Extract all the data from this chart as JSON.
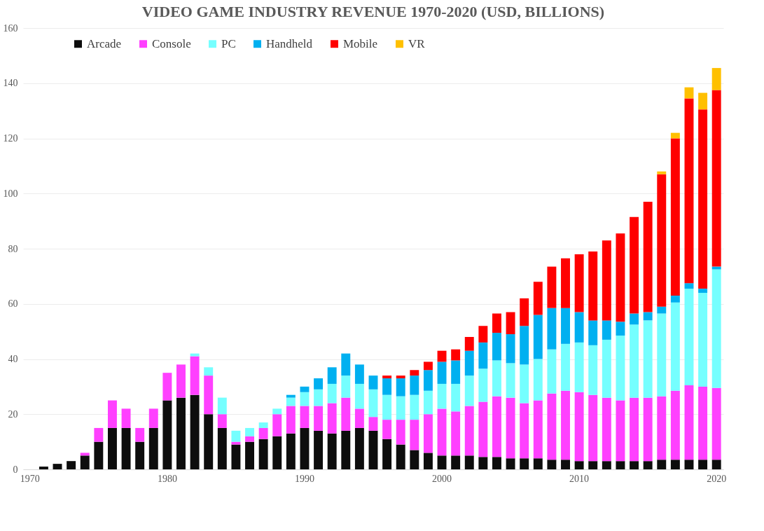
{
  "chart_data": {
    "type": "bar",
    "title": "VIDEO GAME INDUSTRY REVENUE 1970-2020 (USD, BILLIONS)",
    "stacked": true,
    "categories": [
      "1970",
      null,
      null,
      null,
      null,
      null,
      null,
      null,
      null,
      null,
      "1980",
      null,
      null,
      null,
      null,
      null,
      null,
      null,
      null,
      null,
      "1990",
      null,
      null,
      null,
      null,
      null,
      null,
      null,
      null,
      null,
      "2000",
      null,
      null,
      null,
      null,
      null,
      null,
      null,
      null,
      null,
      "2010",
      null,
      null,
      null,
      null,
      null,
      null,
      null,
      null,
      null,
      "2020"
    ],
    "ylim": [
      0,
      160
    ],
    "yticks": [
      0,
      20,
      40,
      60,
      80,
      100,
      120,
      140,
      160
    ],
    "grid": "y",
    "legend": "top left",
    "series": [
      {
        "name": "Arcade",
        "color": "#0d0d0d",
        "values": [
          null,
          1,
          2,
          3,
          5,
          10,
          15,
          15,
          10,
          15,
          25,
          26,
          27,
          20,
          15,
          9,
          10,
          11,
          12,
          13,
          15,
          14,
          13,
          14,
          15,
          14,
          11,
          9,
          7,
          6,
          5,
          5,
          5,
          4.5,
          4.5,
          4,
          4,
          4,
          3.5,
          3.5,
          3,
          3,
          3,
          3,
          3,
          3,
          3.5,
          3.5,
          3.5,
          3.5,
          3.5
        ]
      },
      {
        "name": "Console",
        "color": "#ff40ff",
        "values": [
          null,
          null,
          null,
          null,
          1,
          5,
          10,
          7,
          5,
          7,
          10,
          12,
          14,
          14,
          5,
          1,
          2,
          4,
          8,
          10,
          8,
          9,
          11,
          12,
          7,
          5,
          7,
          9,
          11,
          14,
          17,
          16,
          18,
          20,
          22,
          22,
          20,
          21,
          24,
          25,
          25,
          24,
          23,
          22,
          23,
          23,
          23,
          25,
          27,
          26.5,
          26
        ]
      },
      {
        "name": "PC",
        "color": "#75ffff",
        "values": [
          null,
          null,
          null,
          null,
          null,
          null,
          null,
          null,
          null,
          null,
          null,
          null,
          1,
          3,
          6,
          4,
          3,
          2,
          2,
          3,
          5,
          6,
          7,
          8,
          9,
          10,
          9,
          8.5,
          9,
          8.5,
          9,
          10,
          11,
          12,
          13,
          12.5,
          14,
          15,
          16,
          17,
          18,
          18,
          21,
          23.5,
          26.5,
          28,
          30,
          32,
          35,
          34,
          43
        ]
      },
      {
        "name": "Handheld",
        "color": "#00b0f0",
        "values": [
          null,
          null,
          null,
          null,
          null,
          null,
          null,
          null,
          null,
          null,
          null,
          null,
          null,
          null,
          null,
          null,
          null,
          null,
          null,
          1,
          2,
          4,
          6,
          8,
          7,
          5,
          6,
          6.5,
          7,
          7.5,
          8,
          8.5,
          9,
          9.5,
          10,
          10.5,
          14,
          16,
          15,
          13,
          11,
          9,
          7,
          5,
          4,
          3,
          2.5,
          2.5,
          2,
          1.5,
          1
        ]
      },
      {
        "name": "Mobile",
        "color": "#ff0000",
        "values": [
          null,
          null,
          null,
          null,
          null,
          null,
          null,
          null,
          null,
          null,
          null,
          null,
          null,
          null,
          null,
          null,
          null,
          null,
          null,
          null,
          null,
          null,
          null,
          null,
          null,
          null,
          1,
          1,
          2,
          3,
          4,
          4,
          5,
          6,
          7,
          8,
          10,
          12,
          15,
          18,
          21,
          25,
          29,
          32,
          35,
          40,
          48,
          57,
          67,
          65,
          64
        ]
      },
      {
        "name": "VR",
        "color": "#ffc000",
        "values": [
          null,
          null,
          null,
          null,
          null,
          null,
          null,
          null,
          null,
          null,
          null,
          null,
          null,
          null,
          null,
          null,
          null,
          null,
          null,
          null,
          null,
          null,
          null,
          null,
          null,
          null,
          null,
          null,
          null,
          null,
          null,
          null,
          null,
          null,
          null,
          null,
          null,
          null,
          null,
          null,
          null,
          null,
          null,
          null,
          null,
          null,
          1,
          2,
          4,
          6,
          8
        ]
      }
    ]
  }
}
